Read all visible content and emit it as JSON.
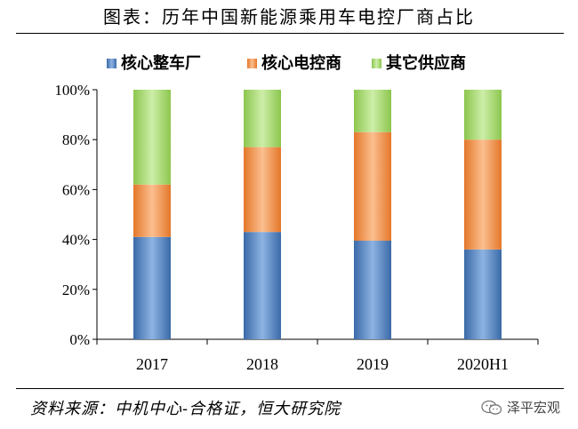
{
  "header": {
    "title": "图表：历年中国新能源乘用车电控厂商占比"
  },
  "footer": {
    "source": "资料来源：中机中心-合格证，恒大研究院",
    "watermark": "泽平宏观"
  },
  "chart_data": {
    "type": "bar",
    "stacked": true,
    "categories": [
      "2017",
      "2018",
      "2019",
      "2020H1"
    ],
    "series": [
      {
        "name": "核心整车厂",
        "color": "#4F81BD",
        "values": [
          41,
          43,
          39.5,
          36
        ]
      },
      {
        "name": "核心电控商",
        "color": "#F79646",
        "values": [
          21,
          34,
          43.5,
          44
        ]
      },
      {
        "name": "其它供应商",
        "color": "#9BD05F",
        "values": [
          38,
          23,
          17,
          20
        ]
      }
    ],
    "ylim": [
      0,
      100
    ],
    "yticks": [
      "0%",
      "20%",
      "40%",
      "60%",
      "80%",
      "100%"
    ],
    "legend_position": "top",
    "xlabel": "",
    "ylabel": ""
  }
}
